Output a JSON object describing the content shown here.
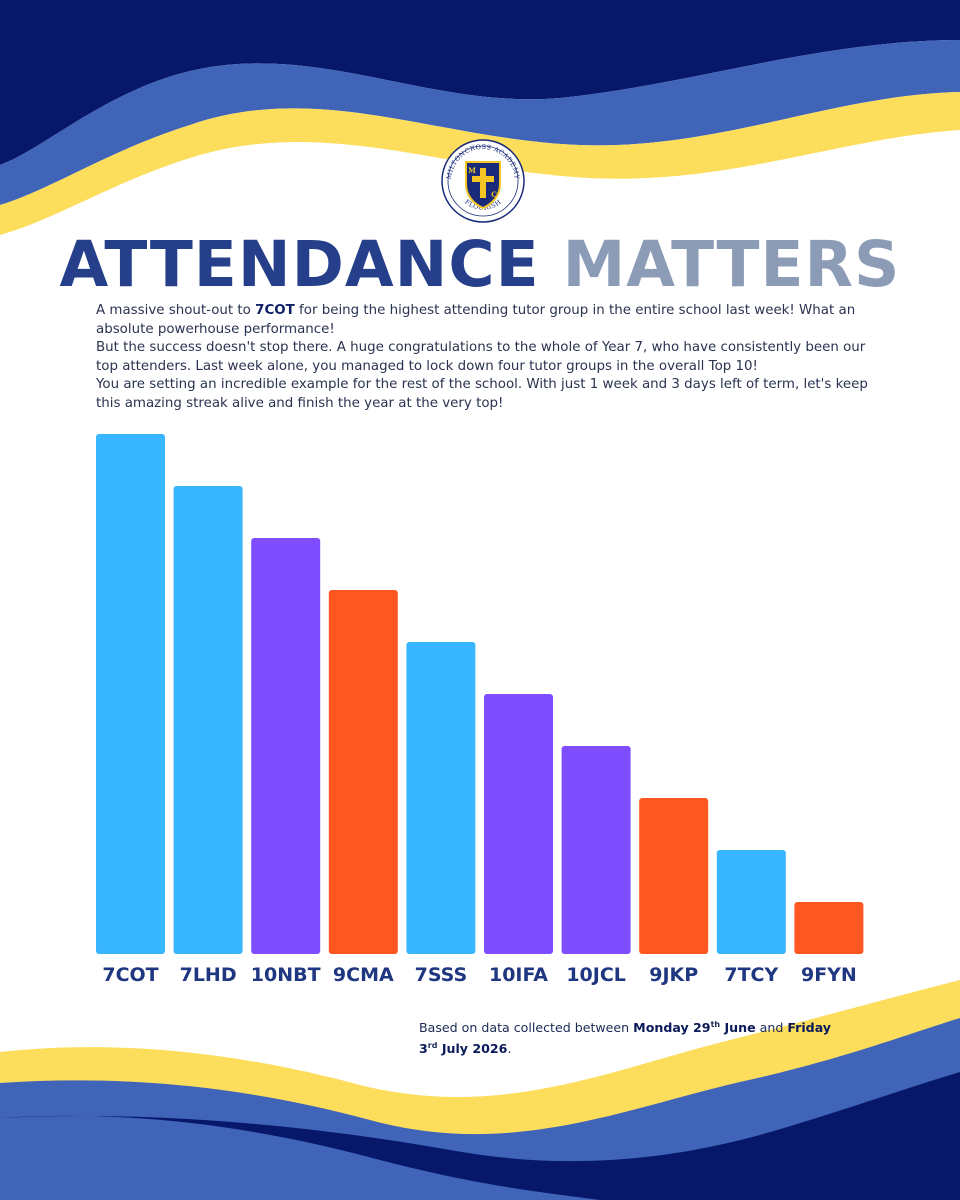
{
  "colors": {
    "navy": "#07186b",
    "royal_blue": "#3f64b8",
    "yellow": "#fcdd5c",
    "title_dark": "#253f8a",
    "title_light": "#8d9cb6",
    "bar_light_blue": "#38b6ff",
    "bar_purple": "#7d4dff",
    "bar_orange": "#ff5722"
  },
  "logo": {
    "icon": "school-crest-icon",
    "top_text": "MILTONCROSS ACADEMY",
    "bottom_text": "FLOURISH",
    "letters": [
      "M",
      "C"
    ]
  },
  "title": {
    "part1": "ATTENDANCE",
    "part2": "MATTERS"
  },
  "intro": {
    "p1_before": "A massive shout-out to ",
    "p1_bold": "7COT",
    "p1_after": " for being the highest attending tutor group in the entire school last week! What an absolute powerhouse performance!",
    "p2": "But the success doesn't stop there. A huge congratulations to the whole of Year 7, who have consistently been our top attenders. Last week alone, you managed to lock down four tutor groups in the overall Top 10!",
    "p3": "You are setting an incredible example for the rest of the school. With just 1 week and 3 days left of term, let's keep this amazing streak alive and finish the year at the very top!"
  },
  "chart_data": {
    "type": "bar",
    "title": "",
    "xlabel": "",
    "ylabel": "",
    "grid": false,
    "categories": [
      "7COT",
      "7LHD",
      "10NBT",
      "9CMA",
      "7SSS",
      "10IFA",
      "10JCL",
      "9JKP",
      "7TCY",
      "9FYN"
    ],
    "values": [
      10,
      9,
      8,
      7,
      6,
      5,
      4,
      3,
      2,
      1
    ],
    "ylim": [
      0,
      10
    ],
    "bar_colors": [
      "#38b6ff",
      "#38b6ff",
      "#7d4dff",
      "#ff5722",
      "#38b6ff",
      "#7d4dff",
      "#7d4dff",
      "#ff5722",
      "#38b6ff",
      "#ff5722"
    ]
  },
  "footnote": {
    "prefix": "Based on data collected between ",
    "start_weekday_day": "Monday 29",
    "start_suffix": "th",
    "start_month": " June",
    "middle": " and ",
    "end_weekday": "Friday",
    "end_day": "3",
    "end_suffix": "rd",
    "end_month_year": " July 2026",
    "end": "."
  }
}
